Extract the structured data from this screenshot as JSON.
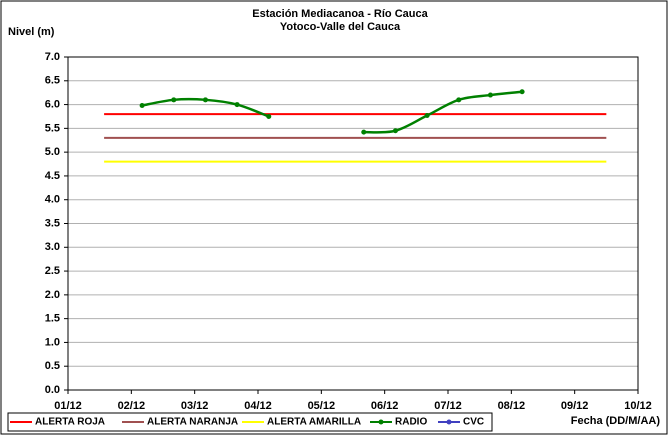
{
  "chart_data": {
    "type": "line",
    "title": "Estación Mediacanoa - Río Cauca",
    "subtitle": "Yotoco-Valle del Cauca",
    "y_label": "Nivel (m)",
    "x_label": "Fecha (DD/M/AA)",
    "xlim": [
      1,
      10
    ],
    "xticks": [
      {
        "value": 1,
        "label": "01/12"
      },
      {
        "value": 2,
        "label": "02/12"
      },
      {
        "value": 3,
        "label": "03/12"
      },
      {
        "value": 4,
        "label": "04/12"
      },
      {
        "value": 5,
        "label": "05/12"
      },
      {
        "value": 6,
        "label": "06/12"
      },
      {
        "value": 7,
        "label": "07/12"
      },
      {
        "value": 8,
        "label": "08/12"
      },
      {
        "value": 9,
        "label": "09/12"
      },
      {
        "value": 10,
        "label": "10/12"
      }
    ],
    "ylim": [
      0,
      7
    ],
    "yticks": [
      {
        "value": 0,
        "label": "0.0"
      },
      {
        "value": 0.5,
        "label": "0.5"
      },
      {
        "value": 1,
        "label": "1.0"
      },
      {
        "value": 1.5,
        "label": "1.5"
      },
      {
        "value": 2,
        "label": "2.0"
      },
      {
        "value": 2.5,
        "label": "2.5"
      },
      {
        "value": 3,
        "label": "3.0"
      },
      {
        "value": 3.5,
        "label": "3.5"
      },
      {
        "value": 4,
        "label": "4.0"
      },
      {
        "value": 4.5,
        "label": "4.5"
      },
      {
        "value": 5,
        "label": "5.0"
      },
      {
        "value": 5.5,
        "label": "5.5"
      },
      {
        "value": 6,
        "label": "6.0"
      },
      {
        "value": 6.5,
        "label": "6.5"
      },
      {
        "value": 7,
        "label": "7.0"
      }
    ],
    "grid": true,
    "legend": "bottom",
    "series": [
      {
        "name": "ALERTA ROJA",
        "color": "#ff0000",
        "x": [
          1.57,
          9.5
        ],
        "values": [
          5.8,
          5.8
        ]
      },
      {
        "name": "ALERTA NARANJA",
        "color": "#a05050",
        "x": [
          1.57,
          9.5
        ],
        "values": [
          5.3,
          5.3
        ]
      },
      {
        "name": "ALERTA AMARILLA",
        "color": "#ffff00",
        "x": [
          1.57,
          9.5
        ],
        "values": [
          4.8,
          4.8
        ]
      },
      {
        "name": "RADIO",
        "color": "#008000",
        "markers": true,
        "x": [
          2.17,
          2.67,
          3.17,
          3.67,
          4.17,
          4.67,
          5.17,
          5.67,
          6.17,
          6.67,
          7.17,
          7.67,
          8.17
        ],
        "values": [
          5.98,
          6.1,
          6.1,
          6.0,
          5.75,
          null,
          null,
          5.42,
          5.45,
          5.77,
          6.1,
          6.2,
          6.27
        ]
      },
      {
        "name": "CVC",
        "color": "#4040c0",
        "markers": true,
        "x": [],
        "values": []
      }
    ]
  }
}
